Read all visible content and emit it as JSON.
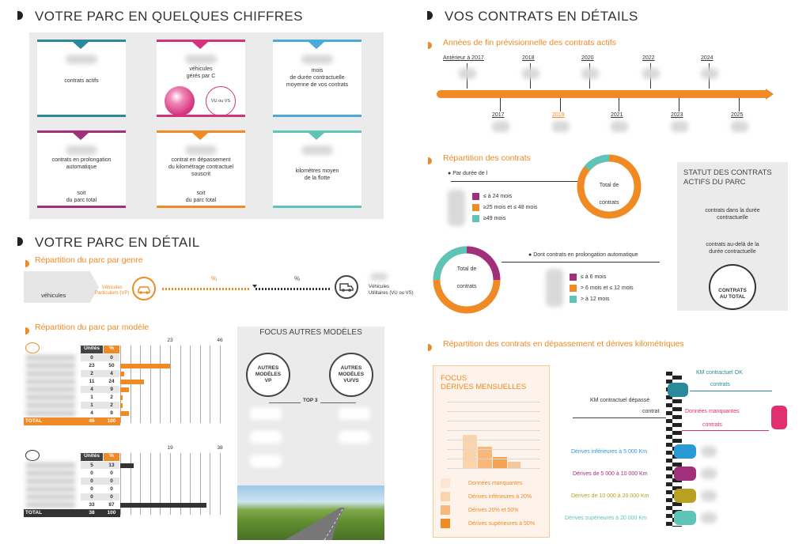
{
  "left": {
    "title": "VOTRE PARC EN QUELQUES CHIFFRES",
    "cards": [
      {
        "text": "contrats actifs",
        "color": "#2a8a9a"
      },
      {
        "text": "véhicules\ngérés par C",
        "color": "#d4327a",
        "sub": "VU ou VS"
      },
      {
        "text": "mois\nde durée contractuelle\nmoyenne de vos contrats",
        "color": "#4aaad8"
      },
      {
        "text": "contrats en prolongation\nautomatique",
        "sub": "soit\ndu parc total",
        "color": "#a0307a"
      },
      {
        "text": "contrat en dépassement\ndu kilométrage contractuel\nsouscrit",
        "sub": "soit\ndu parc total",
        "color": "#f08a24"
      },
      {
        "text": "kilomètres moyen\nde la flotte",
        "color": "#5ec4b8"
      }
    ],
    "detail_title": "VOTRE PARC EN DÉTAIL",
    "genre": {
      "title": "Répartition du parc par genre",
      "vehicles_label": "véhicules",
      "vp_label": "Véhicules\nParticuliers (VP)",
      "pct1": "%",
      "pct2": "%",
      "vu_label": "Véhicules\nUtilitaires (VU ou VS)",
      "vp_share": 0.6
    },
    "model": {
      "title": "Répartition du parc par modèle",
      "top": {
        "headers": [
          "Unités",
          "%"
        ],
        "axis": [
          "23",
          "46"
        ],
        "rows": [
          [
            "0",
            "0"
          ],
          [
            "23",
            "50"
          ],
          [
            "2",
            "4"
          ],
          [
            "11",
            "24"
          ],
          [
            "4",
            "9"
          ],
          [
            "1",
            "2"
          ],
          [
            "1",
            "2"
          ],
          [
            "4",
            "9"
          ]
        ],
        "total": [
          "TOTAL",
          "46",
          "100"
        ]
      },
      "bottom": {
        "headers": [
          "Unités",
          "%"
        ],
        "axis": [
          "19",
          "38"
        ],
        "rows": [
          [
            "5",
            "13"
          ],
          [
            "0",
            "0"
          ],
          [
            "0",
            "0"
          ],
          [
            "0",
            "0"
          ],
          [
            "0",
            "0"
          ],
          [
            "33",
            "87"
          ]
        ],
        "total": [
          "TOTAL",
          "38",
          "100"
        ]
      },
      "focus_title": "FOCUS AUTRES MODÈLES",
      "circle1": "AUTRES\nMODÈLES\nVP",
      "circle2": "AUTRES\nMODÈLES\nVU/VS",
      "top3": "TOP 3"
    }
  },
  "right": {
    "title": "VOS CONTRATS EN DÉTAILS",
    "timeline": {
      "title": "Années de fin prévisionnelle des contrats actifs",
      "top": [
        "Antérieur à 2017",
        "2018",
        "2020",
        "2022",
        "2024"
      ],
      "bottom": [
        "2017",
        "2019",
        "2021",
        "2023",
        "2025"
      ]
    },
    "repartition": {
      "title": "Répartition des contrats",
      "par_duree": "Par durée de l",
      "donut1": "Total de\ncontrats",
      "legend1": [
        {
          "c": "#a0307a",
          "t": "≤ à 24 mois"
        },
        {
          "c": "#f08a24",
          "t": "≥25 mois et ≤ 48 mois"
        },
        {
          "c": "#5ec4b8",
          "t": "≥49 mois"
        }
      ],
      "donut2": "Total de\ncontrats",
      "prolong": "Dont contrats en prolongation automatique",
      "legend2": [
        {
          "c": "#a0307a",
          "t": "≤  à 6 mois"
        },
        {
          "c": "#f08a24",
          "t": "> 6 mois et ≤ 12 mois"
        },
        {
          "c": "#5ec4b8",
          "t": "> à 12 mois"
        }
      ],
      "statut": {
        "title": "STATUT DES CONTRATS\nACTIFS DU PARC",
        "l1": "contrats dans la durée\ncontractuelle",
        "l2": "contrats au-delà de la\ndurée contractuelle",
        "circle": "CONTRATS\nAU TOTAL"
      }
    },
    "depassement": {
      "title": "Répartition des contrats en dépassement et dérives kilométriques",
      "focus": "FOCUS\nDÉRIVES MENSUELLES",
      "focus_legend": [
        "Données manquantes",
        "Dérives inférieures à 20%",
        "Dérives 20% et 50%",
        "Dérives supérieures à 50%"
      ],
      "km_ok": "KM contractuel OK",
      "km_ok_sub": "contrats",
      "km_dep": "KM contractuel dépassé",
      "km_dep_sub": "contrat",
      "missing": "Données manquantes",
      "missing_sub": "contrats",
      "derives": [
        {
          "t": "Dérives inférieures à 5 000 Km",
          "c": "#2a9ad4"
        },
        {
          "t": "Dérives de 5 000 à 10 000 Km",
          "c": "#a0307a"
        },
        {
          "t": "Dérives de 10 000 à 20 000 Km",
          "c": "#b8a020"
        },
        {
          "t": "Dérives supérieures à 20 000 Km",
          "c": "#5ec4b8"
        }
      ]
    }
  }
}
